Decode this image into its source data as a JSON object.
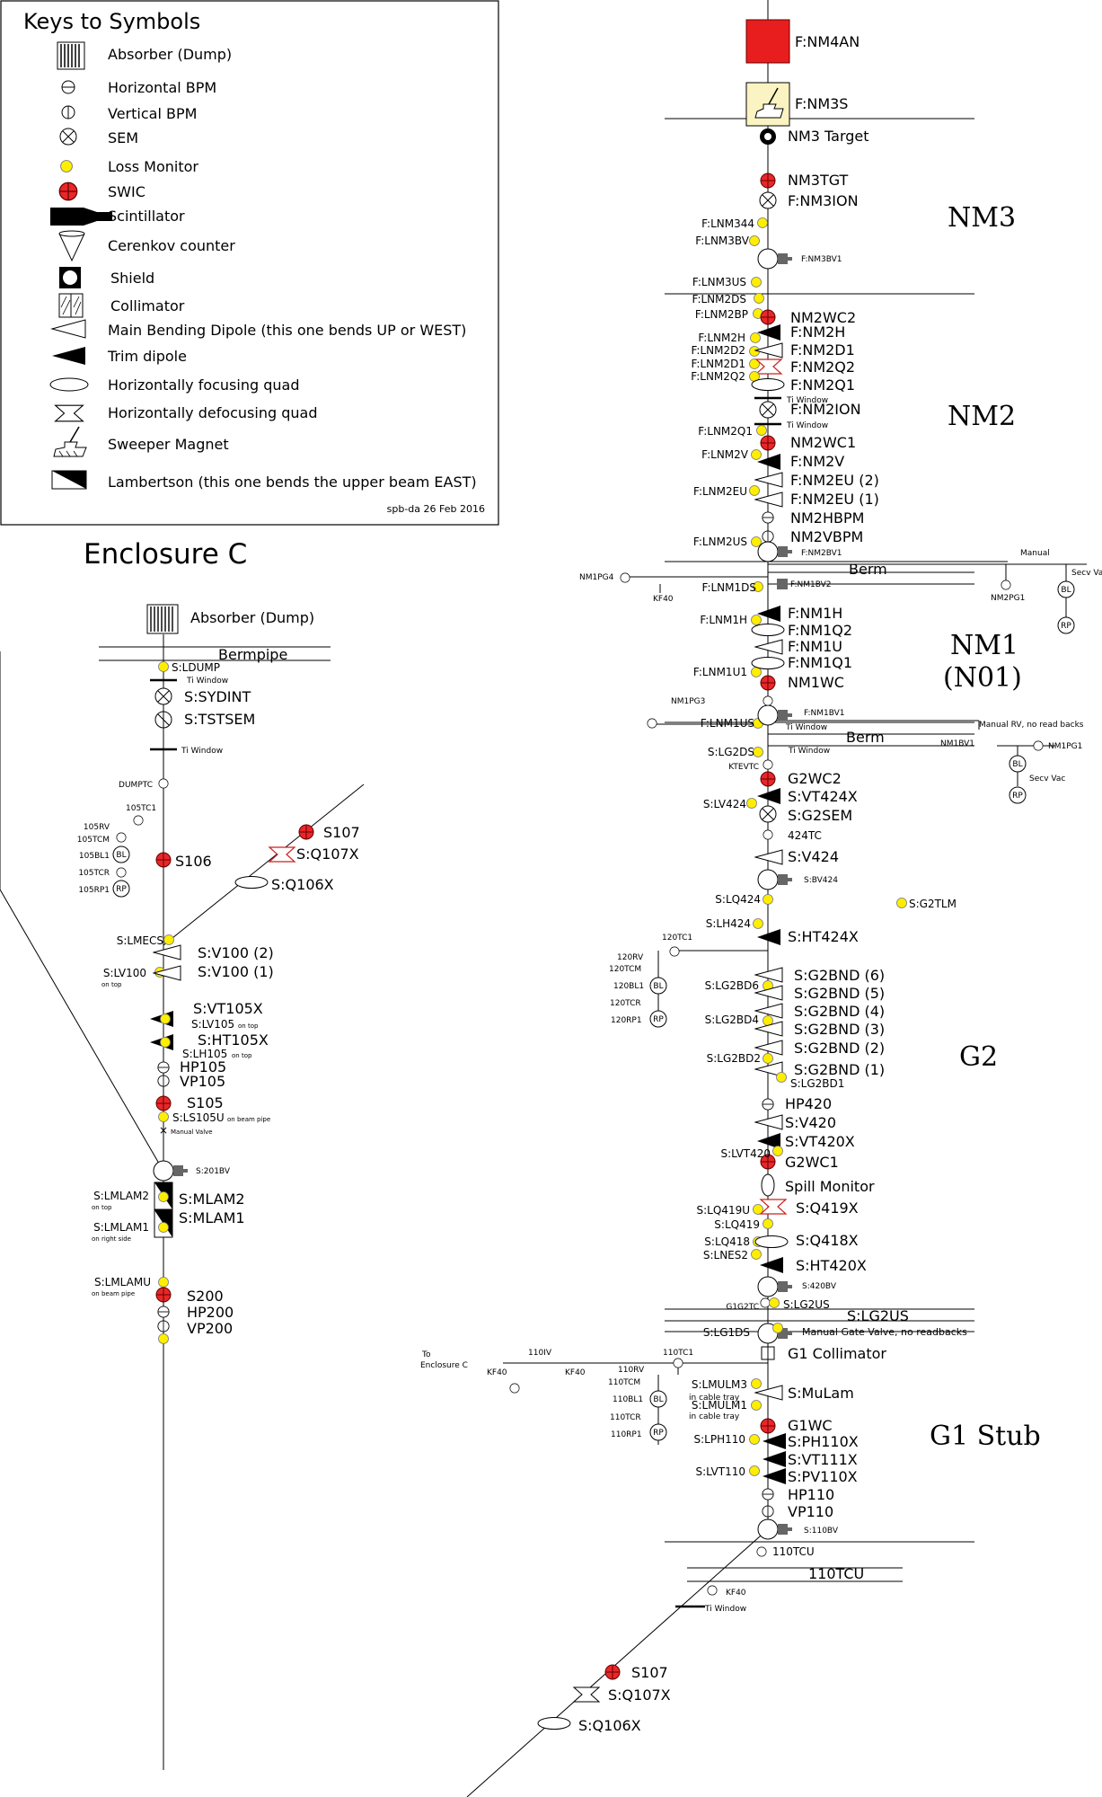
{
  "keys": {
    "title": "Keys to Symbols",
    "items": [
      {
        "symbol": "absorber",
        "label": "Absorber (Dump)"
      },
      {
        "symbol": "hbpm",
        "label": "Horizontal BPM"
      },
      {
        "symbol": "vbpm",
        "label": "Vertical BPM"
      },
      {
        "symbol": "sem",
        "label": "SEM"
      },
      {
        "symbol": "loss",
        "label": "Loss Monitor"
      },
      {
        "symbol": "swic",
        "label": "SWIC"
      },
      {
        "symbol": "scint",
        "label": "Scintillator"
      },
      {
        "symbol": "cerenkov",
        "label": "Cerenkov counter"
      },
      {
        "symbol": "shield",
        "label": "Shield"
      },
      {
        "symbol": "collimator",
        "label": "Collimator"
      },
      {
        "symbol": "dipole",
        "label": "Main Bending Dipole (this one bends UP or WEST)"
      },
      {
        "symbol": "trim",
        "label": "Trim dipole"
      },
      {
        "symbol": "fquad",
        "label": "Horizontally focusing quad"
      },
      {
        "symbol": "dquad",
        "label": "Horizontally defocusing quad"
      },
      {
        "symbol": "sweeper",
        "label": "Sweeper Magnet"
      },
      {
        "symbol": "lambertson",
        "label": "Lambertson (this one bends the upper beam EAST)"
      }
    ],
    "credit": "spb-da 26 Feb 2016"
  },
  "colors": {
    "swic": "#e8272a",
    "loss": "#ffee00",
    "target_box": "#e81e1e",
    "sweeper_box": "#fbf4c2",
    "valve": "#666666"
  },
  "sections": [
    "NM3",
    "NM2",
    "NM1",
    "(N01)",
    "G2",
    "G1 Stub"
  ],
  "enclosure": {
    "title": "Enclosure C",
    "absorber": "Absorber (Dump)",
    "bermpipe": "Bermpipe"
  },
  "main_labels": [
    {
      "name": "F:NM4AN",
      "symbol": "red-box"
    },
    {
      "name": "F:NM3S",
      "symbol": "sweeper"
    },
    {
      "name": "NM3 Target",
      "symbol": "target"
    },
    {
      "name": "NM3TGT",
      "symbol": "swic"
    },
    {
      "name": "F:NM3ION",
      "symbol": "sem"
    },
    {
      "name": "F:LNM344",
      "symbol": "loss"
    },
    {
      "name": "F:LNM3BV",
      "symbol": "loss"
    },
    {
      "name": "F:NM3BV1",
      "symbol": "valve"
    },
    {
      "name": "F:LNM3US",
      "symbol": "loss"
    },
    {
      "name": "F:LNM2DS",
      "symbol": "loss"
    },
    {
      "name": "F:LNM2BP",
      "symbol": "loss"
    },
    {
      "name": "NM2WC2",
      "symbol": "swic"
    },
    {
      "name": "F:LNM2H",
      "symbol": "loss"
    },
    {
      "name": "F:NM2H",
      "symbol": "trim"
    },
    {
      "name": "F:LNM2D2",
      "symbol": "loss"
    },
    {
      "name": "F:NM2D1",
      "symbol": "dipole"
    },
    {
      "name": "F:LNM2D1",
      "symbol": "loss"
    },
    {
      "name": "F:NM2Q2",
      "symbol": "dquad"
    },
    {
      "name": "F:LNM2Q2",
      "symbol": "loss"
    },
    {
      "name": "F:NM2Q1",
      "symbol": "fquad"
    },
    {
      "name": "Ti Window",
      "symbol": "window"
    },
    {
      "name": "F:NM2ION",
      "symbol": "sem"
    },
    {
      "name": "Ti Window",
      "symbol": "window"
    },
    {
      "name": "F:LNM2Q1",
      "symbol": "loss"
    },
    {
      "name": "NM2WC1",
      "symbol": "swic"
    },
    {
      "name": "F:LNM2V",
      "symbol": "loss"
    },
    {
      "name": "F:NM2V",
      "symbol": "trim"
    },
    {
      "name": "F:NM2EU (2)",
      "symbol": "dipole"
    },
    {
      "name": "F:LNM2EU",
      "symbol": "loss"
    },
    {
      "name": "F:NM2EU (1)",
      "symbol": "dipole"
    },
    {
      "name": "NM2HBPM",
      "symbol": "hbpm"
    },
    {
      "name": "F:LNM2US",
      "symbol": "loss"
    },
    {
      "name": "NM2VBPM",
      "symbol": "vbpm"
    },
    {
      "name": "F:NM2BV1",
      "symbol": "valve"
    },
    {
      "name": "Berm",
      "symbol": "berm"
    },
    {
      "name": "F:LNM1DS",
      "symbol": "loss"
    },
    {
      "name": "F:NM1BV2",
      "symbol": "valve"
    },
    {
      "name": "F:LNM1H",
      "symbol": "loss"
    },
    {
      "name": "F:NM1H",
      "symbol": "trim"
    },
    {
      "name": "F:NM1Q2",
      "symbol": "fquad"
    },
    {
      "name": "F:NM1U",
      "symbol": "dipole"
    },
    {
      "name": "F:LNM1U1",
      "symbol": "loss"
    },
    {
      "name": "F:NM1Q1",
      "symbol": "fquad"
    },
    {
      "name": "NM1WC",
      "symbol": "swic"
    },
    {
      "name": "F:LNM1US",
      "symbol": "loss"
    },
    {
      "name": "F:NM1BV1",
      "symbol": "valve"
    },
    {
      "name": "Ti Window",
      "symbol": "window"
    },
    {
      "name": "Berm",
      "symbol": "berm"
    },
    {
      "name": "S:LG2DS",
      "symbol": "loss"
    },
    {
      "name": "Ti Window",
      "symbol": "window"
    },
    {
      "name": "KTEVTC",
      "symbol": "gauge"
    },
    {
      "name": "G2WC2",
      "symbol": "swic"
    },
    {
      "name": "S:LV424",
      "symbol": "loss"
    },
    {
      "name": "S:VT424X",
      "symbol": "trim"
    },
    {
      "name": "S:G2SEM",
      "symbol": "sem"
    },
    {
      "name": "424TC",
      "symbol": "gauge"
    },
    {
      "name": "S:V424",
      "symbol": "dipole"
    },
    {
      "name": "S:BV424",
      "symbol": "valve"
    },
    {
      "name": "S:LQ424",
      "symbol": "loss"
    },
    {
      "name": "S:G2TLM",
      "symbol": "loss"
    },
    {
      "name": "S:LH424",
      "symbol": "loss"
    },
    {
      "name": "S:HT424X",
      "symbol": "trim"
    },
    {
      "name": "S:LG2BD6",
      "symbol": "loss"
    },
    {
      "name": "S:G2BND (6)",
      "symbol": "dipole"
    },
    {
      "name": "S:G2BND (5)",
      "symbol": "dipole"
    },
    {
      "name": "S:LG2BD4",
      "symbol": "loss"
    },
    {
      "name": "S:G2BND (4)",
      "symbol": "dipole"
    },
    {
      "name": "S:G2BND (3)",
      "symbol": "dipole"
    },
    {
      "name": "S:G2BND (2)",
      "symbol": "dipole"
    },
    {
      "name": "S:LG2BD2",
      "symbol": "loss"
    },
    {
      "name": "S:G2BND (1)",
      "symbol": "dipole"
    },
    {
      "name": "S:LG2BD1",
      "symbol": "loss"
    },
    {
      "name": "HP420",
      "symbol": "hbpm"
    },
    {
      "name": "S:V420",
      "symbol": "dipole"
    },
    {
      "name": "S:VT420X",
      "symbol": "trim"
    },
    {
      "name": "S:LVT420",
      "symbol": "loss"
    },
    {
      "name": "G2WC1",
      "symbol": "swic"
    },
    {
      "name": "Spill Monitor",
      "symbol": "fquad"
    },
    {
      "name": "S:LQ419U",
      "symbol": "loss"
    },
    {
      "name": "S:Q419X",
      "symbol": "dquad"
    },
    {
      "name": "S:LQ419",
      "symbol": "loss"
    },
    {
      "name": "S:LQ418",
      "symbol": "loss"
    },
    {
      "name": "S:Q418X",
      "symbol": "fquad"
    },
    {
      "name": "S:LNES2",
      "symbol": "loss"
    },
    {
      "name": "S:HT420X",
      "symbol": "trim"
    },
    {
      "name": "S:420BV",
      "symbol": "valve"
    },
    {
      "name": "G1G2TC",
      "symbol": "gauge"
    },
    {
      "name": "S:LG2US",
      "symbol": "loss"
    },
    {
      "name": "Berm",
      "symbol": "berm"
    },
    {
      "name": "S:LG1DS",
      "symbol": "loss"
    },
    {
      "name": "Manual Gate Valve, no readbacks",
      "symbol": "valve"
    },
    {
      "name": "G1 Collimator",
      "symbol": "collimator"
    },
    {
      "name": "110TC1",
      "symbol": "gauge"
    },
    {
      "name": "S:LMULM3",
      "symbol": "loss"
    },
    {
      "name": "S:MuLam",
      "symbol": "dipole"
    },
    {
      "name": "S:LMULM1",
      "symbol": "loss"
    },
    {
      "name": "G1WC",
      "symbol": "swic"
    },
    {
      "name": "S:LPH110",
      "symbol": "loss"
    },
    {
      "name": "S:PH110X",
      "symbol": "trim"
    },
    {
      "name": "S:VT111X",
      "symbol": "trim"
    },
    {
      "name": "S:LVT110",
      "symbol": "loss"
    },
    {
      "name": "S:PV110X",
      "symbol": "trim"
    },
    {
      "name": "HP110",
      "symbol": "hbpm"
    },
    {
      "name": "VP110",
      "symbol": "vbpm"
    },
    {
      "name": "S:110BV",
      "symbol": "valve"
    },
    {
      "name": "110TCU",
      "symbol": "gauge"
    },
    {
      "name": "Bermpipe",
      "symbol": "berm"
    },
    {
      "name": "KF40",
      "symbol": "gauge"
    },
    {
      "name": "Ti Window",
      "symbol": "window"
    },
    {
      "name": "S107",
      "symbol": "swic"
    },
    {
      "name": "S:Q107X",
      "symbol": "dquad"
    },
    {
      "name": "S:Q106X",
      "symbol": "fquad"
    }
  ],
  "small_notes": [
    "Manual",
    "Secv Vac",
    "NM2PG1",
    "NM1PG4",
    "KF40",
    "NM1PG3",
    "Manual RV, no read backs",
    "NM1BV1",
    "NM1PG1",
    "Secv Vac",
    "120TC1",
    "120RV",
    "120TCM",
    "120BL1",
    "120TCR",
    "120RP1",
    "in cable tray",
    "in cable tray",
    "To",
    "Enclosure C",
    "110IV",
    "KF40",
    "KF40",
    "110RV",
    "110TCM",
    "110BL1",
    "110TCR",
    "110RP1"
  ],
  "gauge_tags": {
    "pg": "PG",
    "bl": "BL",
    "rp": "RP"
  },
  "enc_labels": [
    {
      "name": "S:LDUMP"
    },
    {
      "name": "Ti Window"
    },
    {
      "name": "S:SYDINT"
    },
    {
      "name": "S:TSTSEM"
    },
    {
      "name": "Ti Window"
    },
    {
      "name": "DUMPTC"
    },
    {
      "name": "105TC1"
    },
    {
      "name": "105RV"
    },
    {
      "name": "105TCM"
    },
    {
      "name": "105BL1"
    },
    {
      "name": "105TCR"
    },
    {
      "name": "105RP1"
    },
    {
      "name": "S106"
    },
    {
      "name": "S107"
    },
    {
      "name": "S:Q107X"
    },
    {
      "name": "S:Q106X"
    },
    {
      "name": "S:LMECS"
    },
    {
      "name": "S:V100 (2)"
    },
    {
      "name": "S:LV100"
    },
    {
      "name": "on top"
    },
    {
      "name": "S:V100 (1)"
    },
    {
      "name": "S:VT105X"
    },
    {
      "name": "S:LV105"
    },
    {
      "name": "on top"
    },
    {
      "name": "S:HT105X"
    },
    {
      "name": "S:LH105"
    },
    {
      "name": "on top"
    },
    {
      "name": "HP105"
    },
    {
      "name": "VP105"
    },
    {
      "name": "S105"
    },
    {
      "name": "S:LS105U"
    },
    {
      "name": "on beam pipe"
    },
    {
      "name": "Manual Valve"
    },
    {
      "name": "S:201BV"
    },
    {
      "name": "S:LMLAM2"
    },
    {
      "name": "on top"
    },
    {
      "name": "S:MLAM2"
    },
    {
      "name": "S:LMLAM1"
    },
    {
      "name": "on right side"
    },
    {
      "name": "S:MLAM1"
    },
    {
      "name": "S:LMLAMU"
    },
    {
      "name": "on beam pipe"
    },
    {
      "name": "S200"
    },
    {
      "name": "HP200"
    },
    {
      "name": "VP200"
    }
  ]
}
